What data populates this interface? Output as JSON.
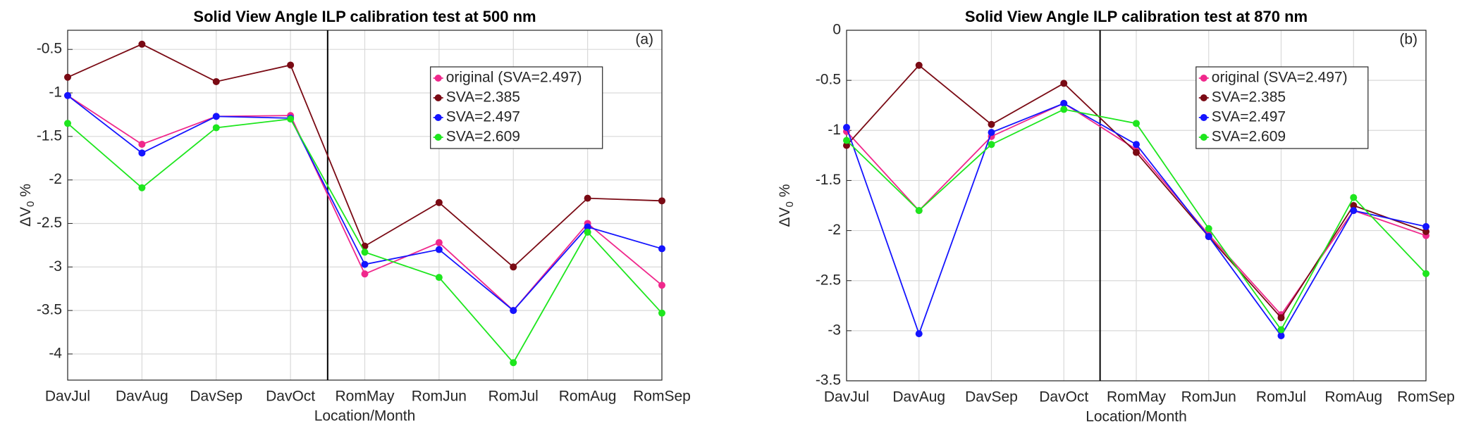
{
  "chart_data": [
    {
      "type": "line",
      "title": "Solid View Angle ILP calibration test at 500 nm",
      "annotation": "(a)",
      "xlabel": "Location/Month",
      "ylabel": "ΔV",
      "ylabel_sub": "0",
      "ylabel_unit": "%",
      "categories": [
        "DavJul",
        "DavAug",
        "DavSep",
        "DavOct",
        "RomMay",
        "RomJun",
        "RomJul",
        "RomAug",
        "RomSep"
      ],
      "ylim": [
        -4.3,
        -0.28
      ],
      "yticks": [
        -4,
        -3.5,
        -3,
        -2.5,
        -2,
        -1.5,
        -1,
        -0.5
      ],
      "grid": true,
      "legend": "upper right",
      "vlines": [
        3.5
      ],
      "series": [
        {
          "name": "original (SVA=2.497)",
          "color": "#f0288c",
          "values": [
            -1.03,
            -1.59,
            -1.27,
            -1.26,
            -3.08,
            -2.72,
            -3.5,
            -2.5,
            -3.21
          ]
        },
        {
          "name": "SVA=2.385",
          "color": "#7a0a14",
          "values": [
            -0.82,
            -0.44,
            -0.87,
            -0.68,
            -2.76,
            -2.26,
            -3.0,
            -2.21,
            -2.24
          ]
        },
        {
          "name": "SVA=2.497",
          "color": "#1414ff",
          "values": [
            -1.03,
            -1.69,
            -1.27,
            -1.29,
            -2.97,
            -2.8,
            -3.5,
            -2.54,
            -2.79
          ]
        },
        {
          "name": "SVA=2.609",
          "color": "#1ee61e",
          "values": [
            -1.35,
            -2.09,
            -1.4,
            -1.3,
            -2.83,
            -3.12,
            -4.1,
            -2.6,
            -3.53
          ]
        }
      ]
    },
    {
      "type": "line",
      "title": "Solid View Angle ILP calibration test at 870 nm",
      "annotation": "(b)",
      "xlabel": "Location/Month",
      "ylabel": "ΔV",
      "ylabel_sub": "0",
      "ylabel_unit": "%",
      "categories": [
        "DavJul",
        "DavAug",
        "DavSep",
        "DavOct",
        "RomMay",
        "RomJun",
        "RomJul",
        "RomAug",
        "RomSep"
      ],
      "ylim": [
        -3.5,
        0
      ],
      "yticks": [
        -3.5,
        -3,
        -2.5,
        -2,
        -1.5,
        -1,
        -0.5,
        0
      ],
      "grid": true,
      "legend": "upper right",
      "vlines": [
        3.5
      ],
      "series": [
        {
          "name": "original (SVA=2.497)",
          "color": "#f0288c",
          "values": [
            -1.01,
            -1.8,
            -1.06,
            -0.73,
            -1.19,
            -2.04,
            -2.84,
            -1.8,
            -2.05
          ]
        },
        {
          "name": "SVA=2.385",
          "color": "#7a0a14",
          "values": [
            -1.15,
            -0.35,
            -0.94,
            -0.53,
            -1.22,
            -2.06,
            -2.87,
            -1.75,
            -2.01
          ]
        },
        {
          "name": "SVA=2.497",
          "color": "#1414ff",
          "values": [
            -0.97,
            -3.03,
            -1.02,
            -0.73,
            -1.14,
            -2.06,
            -3.05,
            -1.8,
            -1.96
          ]
        },
        {
          "name": "SVA=2.609",
          "color": "#1ee61e",
          "values": [
            -1.1,
            -1.8,
            -1.14,
            -0.79,
            -0.93,
            -1.98,
            -2.99,
            -1.67,
            -2.43
          ]
        }
      ]
    }
  ]
}
